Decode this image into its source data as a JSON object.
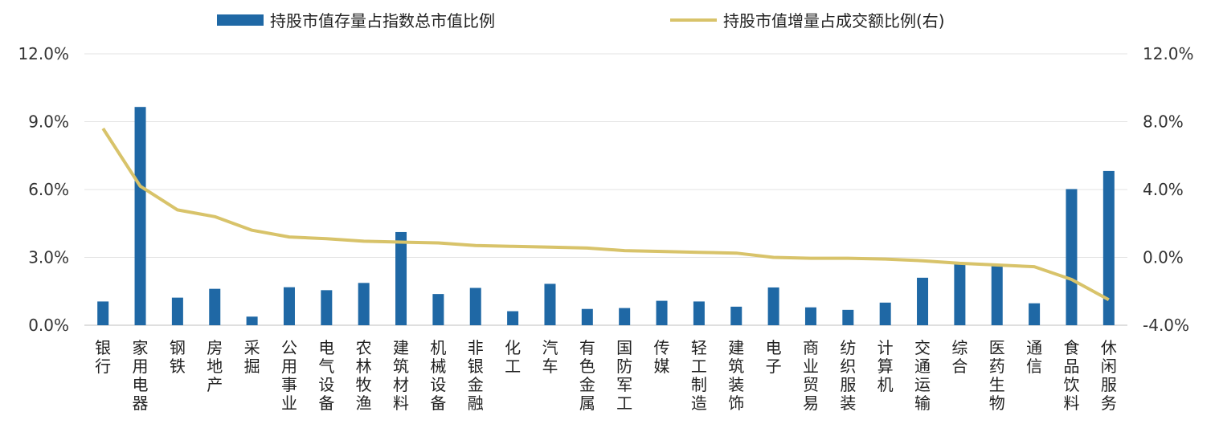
{
  "chart_data": {
    "type": "bar",
    "categories": [
      "银行",
      "家用电器",
      "钢铁",
      "房地产",
      "采掘",
      "公用事业",
      "电气设备",
      "农林牧渔",
      "建筑材料",
      "机械设备",
      "非银金融",
      "化工",
      "汽车",
      "有色金属",
      "国防军工",
      "传媒",
      "轻工制造",
      "建筑装饰",
      "电子",
      "商业贸易",
      "纺织服装",
      "计算机",
      "交通运输",
      "综合",
      "医药生物",
      "通信",
      "食品饮料",
      "休闲服务"
    ],
    "series": [
      {
        "name": "持股市值存量占指数总市值比例",
        "type": "bar",
        "axis": "left",
        "color": "#1F68A5",
        "values": [
          1.05,
          9.65,
          1.22,
          1.61,
          0.38,
          1.68,
          1.55,
          1.87,
          4.12,
          1.38,
          1.65,
          0.62,
          1.83,
          0.72,
          0.76,
          1.08,
          1.05,
          0.82,
          1.67,
          0.79,
          0.68,
          1.0,
          2.1,
          2.75,
          2.65,
          0.97,
          6.02,
          6.82
        ]
      },
      {
        "name": "持股市值增量占成交额比例(右)",
        "type": "line",
        "axis": "right",
        "color": "#D8C36A",
        "values": [
          7.6,
          4.2,
          2.8,
          2.4,
          1.6,
          1.2,
          1.1,
          0.95,
          0.9,
          0.85,
          0.7,
          0.65,
          0.6,
          0.55,
          0.4,
          0.35,
          0.3,
          0.25,
          0.0,
          -0.05,
          -0.05,
          -0.1,
          -0.2,
          -0.35,
          -0.45,
          -0.55,
          -1.3,
          -2.5
        ]
      }
    ],
    "y_left": {
      "min": 0,
      "max": 12,
      "ticks": [
        "0.0%",
        "3.0%",
        "6.0%",
        "9.0%",
        "12.0%"
      ]
    },
    "y_right": {
      "min": -4,
      "max": 12,
      "ticks": [
        "-4.0%",
        "0.0%",
        "4.0%",
        "8.0%",
        "12.0%"
      ]
    },
    "grid": true,
    "legend_position": "top"
  }
}
